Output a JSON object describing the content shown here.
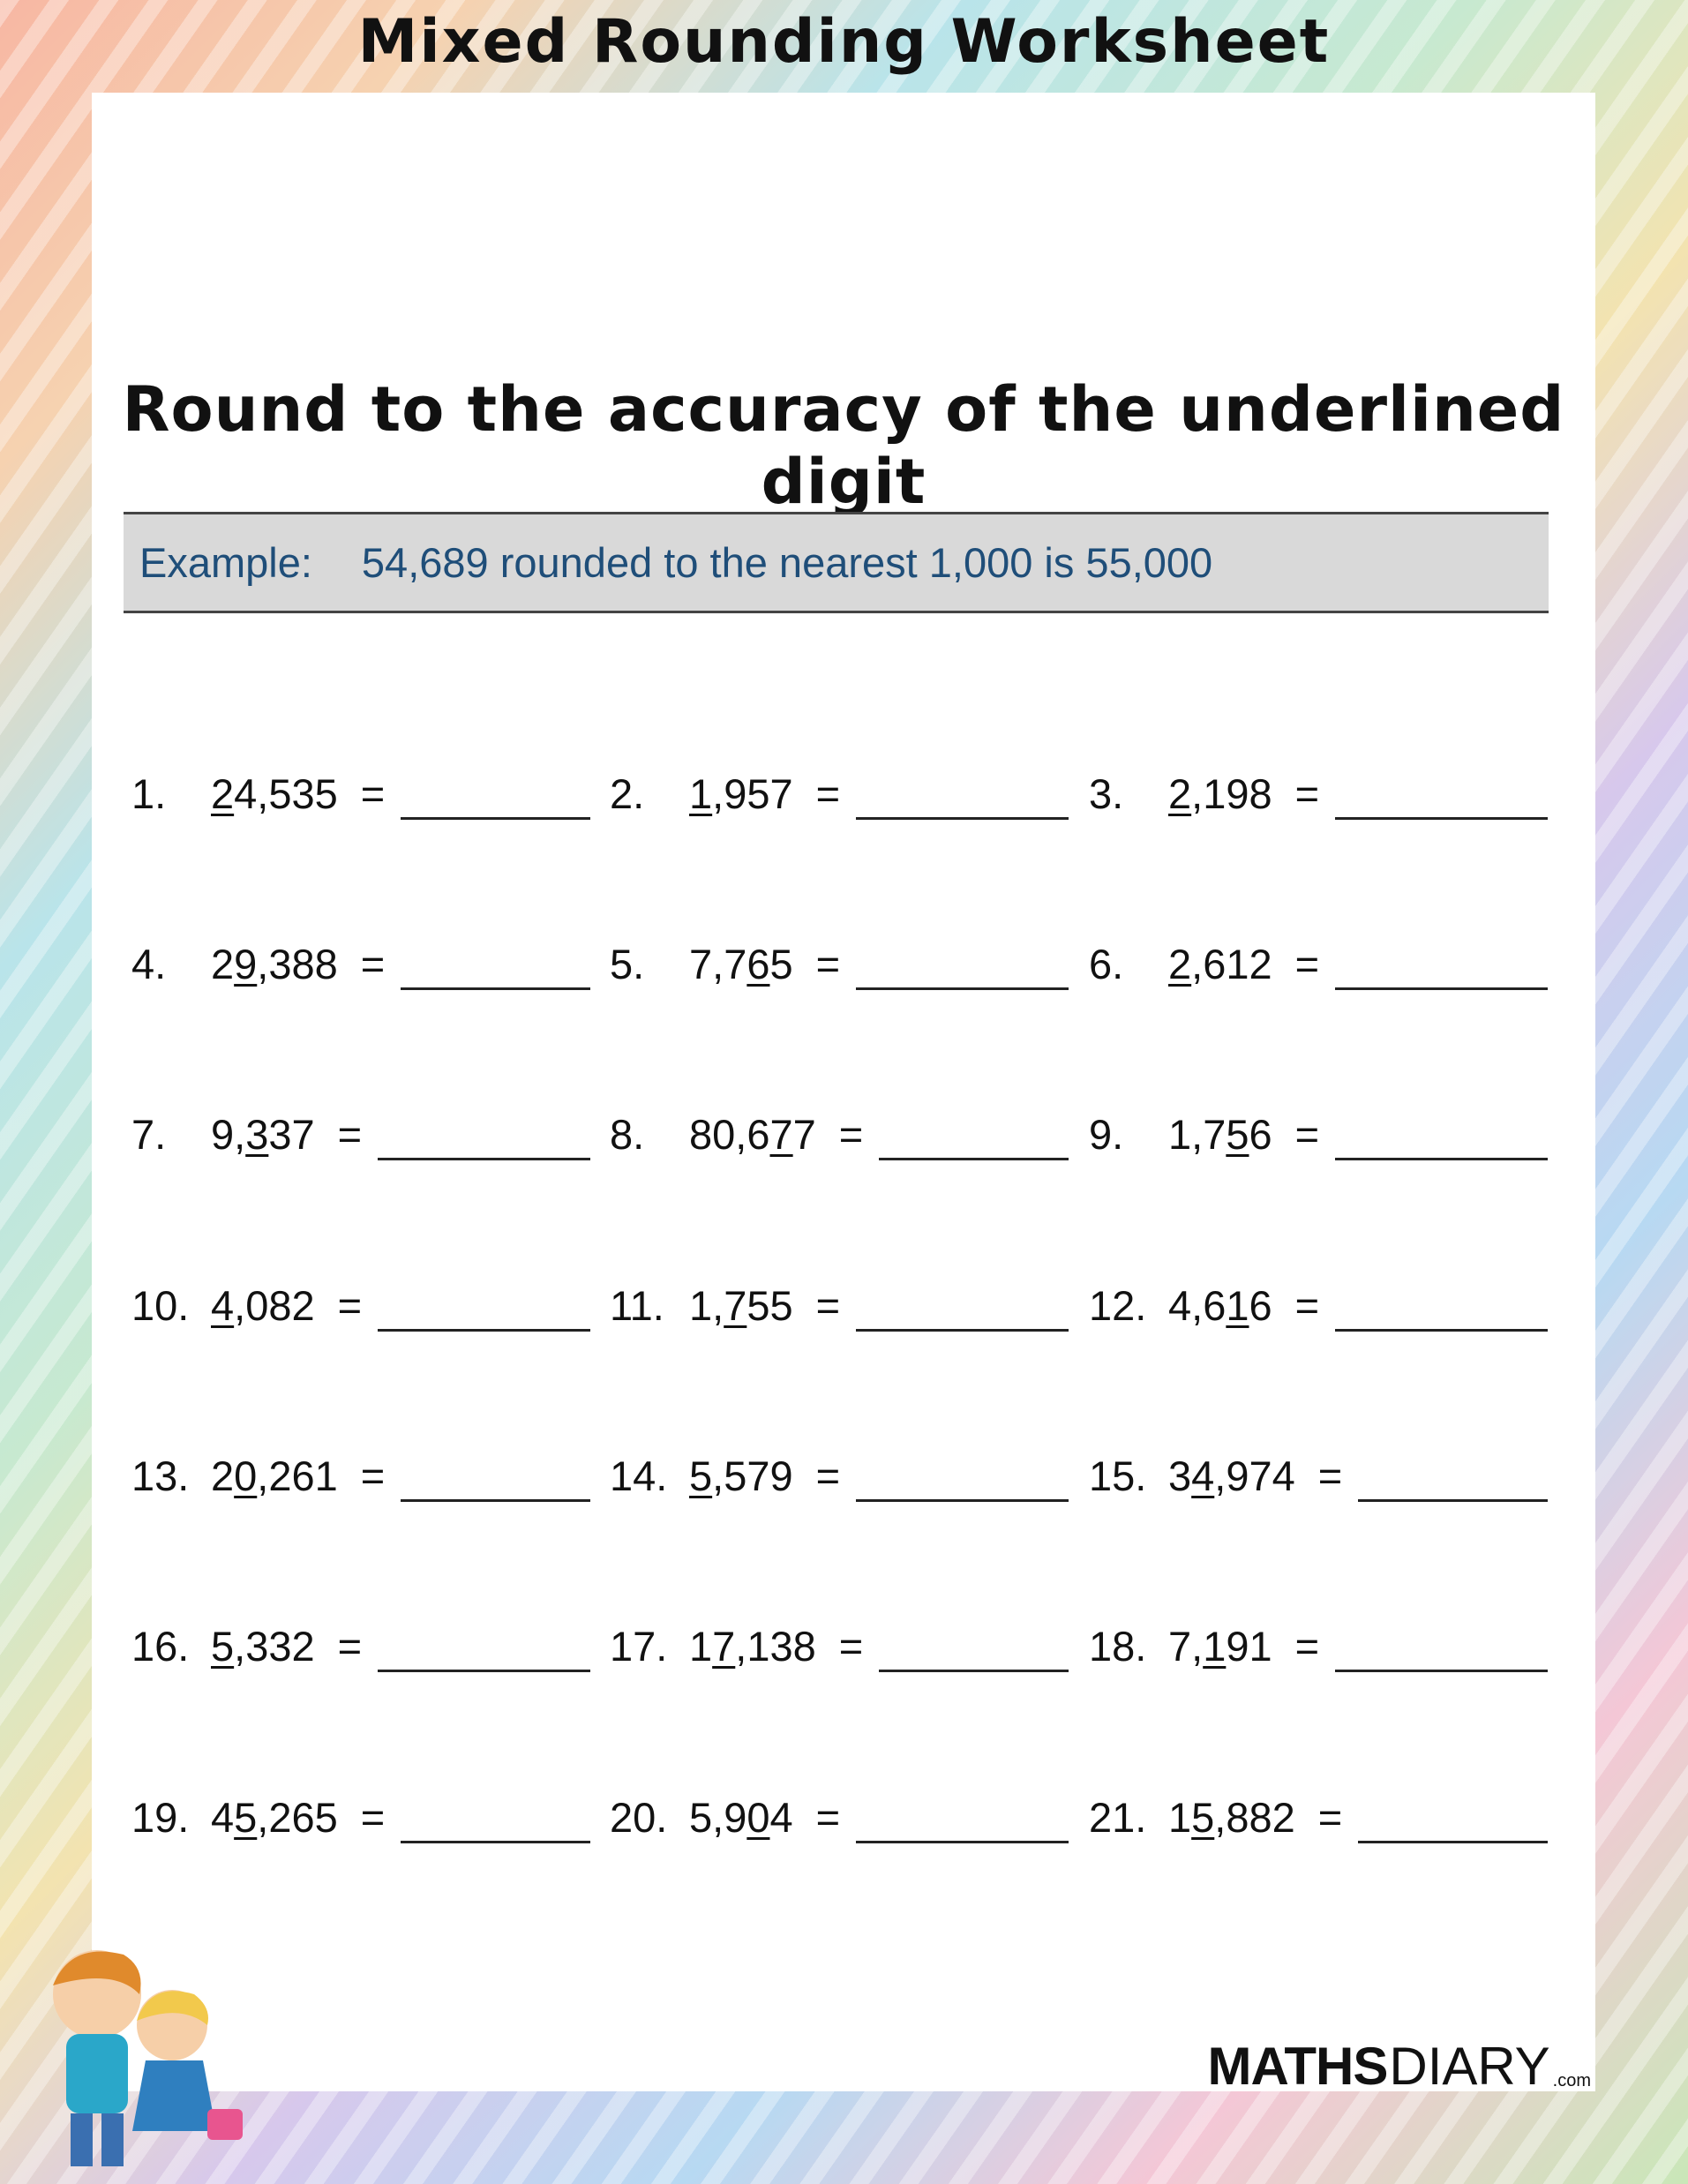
{
  "title": "Mixed Rounding Worksheet",
  "heading": "Round to the accuracy of the underlined digit",
  "example": {
    "label": "Example:",
    "text": "54,689 rounded to the nearest 1,000 is 55,000",
    "color": "#1f4e79"
  },
  "problems": [
    {
      "n": "1.",
      "pre": "",
      "u": "2",
      "post": "4,535"
    },
    {
      "n": "2.",
      "pre": "",
      "u": "1",
      "post": ",957"
    },
    {
      "n": "3.",
      "pre": "",
      "u": "2",
      "post": ",198"
    },
    {
      "n": "4.",
      "pre": "2",
      "u": "9",
      "post": ",388"
    },
    {
      "n": "5.",
      "pre": "7,7",
      "u": "6",
      "post": "5"
    },
    {
      "n": "6.",
      "pre": "",
      "u": "2",
      "post": ",612"
    },
    {
      "n": "7.",
      "pre": "9,",
      "u": "3",
      "post": "37"
    },
    {
      "n": "8.",
      "pre": "80,6",
      "u": "7",
      "post": "7"
    },
    {
      "n": "9.",
      "pre": "1,7",
      "u": "5",
      "post": "6"
    },
    {
      "n": "10.",
      "pre": "",
      "u": "4",
      "post": ",082"
    },
    {
      "n": "11.",
      "pre": "1,",
      "u": "7",
      "post": "55"
    },
    {
      "n": "12.",
      "pre": "4,6",
      "u": "1",
      "post": "6"
    },
    {
      "n": "13.",
      "pre": "2",
      "u": "0",
      "post": ",261"
    },
    {
      "n": "14.",
      "pre": "",
      "u": "5",
      "post": ",579"
    },
    {
      "n": "15.",
      "pre": "3",
      "u": "4",
      "post": ",974"
    },
    {
      "n": "16.",
      "pre": "",
      "u": "5",
      "post": ",332"
    },
    {
      "n": "17.",
      "pre": "1",
      "u": "7",
      "post": ",138"
    },
    {
      "n": "18.",
      "pre": "7,",
      "u": "1",
      "post": "91"
    },
    {
      "n": "19.",
      "pre": "4",
      "u": "5",
      "post": ",265"
    },
    {
      "n": "20.",
      "pre": "5,9",
      "u": "0",
      "post": "4"
    },
    {
      "n": "21.",
      "pre": "1",
      "u": "5",
      "post": ",882"
    }
  ],
  "equals": "=",
  "logo": {
    "bold": "MATHS",
    "light": "DIARY",
    "suffix": ".com"
  }
}
